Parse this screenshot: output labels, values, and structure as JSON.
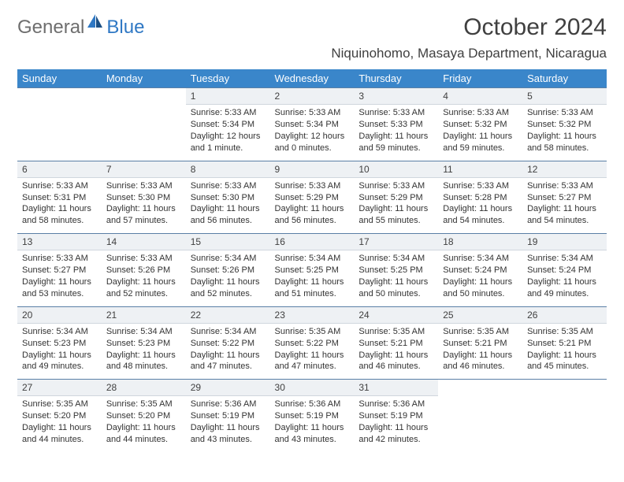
{
  "brand": {
    "part1": "General",
    "part2": "Blue"
  },
  "header": {
    "month_title": "October 2024",
    "location": "Niquinohomo, Masaya Department, Nicaragua"
  },
  "colors": {
    "header_bg": "#3a86ca",
    "daynum_bg": "#eef1f4",
    "rule": "#5a7fa6",
    "text": "#333333",
    "brand_grey": "#6e6e6e",
    "brand_blue": "#2f78c4"
  },
  "day_names": [
    "Sunday",
    "Monday",
    "Tuesday",
    "Wednesday",
    "Thursday",
    "Friday",
    "Saturday"
  ],
  "weeks": [
    [
      null,
      null,
      {
        "n": "1",
        "sr": "Sunrise: 5:33 AM",
        "ss": "Sunset: 5:34 PM",
        "dl": "Daylight: 12 hours and 1 minute."
      },
      {
        "n": "2",
        "sr": "Sunrise: 5:33 AM",
        "ss": "Sunset: 5:34 PM",
        "dl": "Daylight: 12 hours and 0 minutes."
      },
      {
        "n": "3",
        "sr": "Sunrise: 5:33 AM",
        "ss": "Sunset: 5:33 PM",
        "dl": "Daylight: 11 hours and 59 minutes."
      },
      {
        "n": "4",
        "sr": "Sunrise: 5:33 AM",
        "ss": "Sunset: 5:32 PM",
        "dl": "Daylight: 11 hours and 59 minutes."
      },
      {
        "n": "5",
        "sr": "Sunrise: 5:33 AM",
        "ss": "Sunset: 5:32 PM",
        "dl": "Daylight: 11 hours and 58 minutes."
      }
    ],
    [
      {
        "n": "6",
        "sr": "Sunrise: 5:33 AM",
        "ss": "Sunset: 5:31 PM",
        "dl": "Daylight: 11 hours and 58 minutes."
      },
      {
        "n": "7",
        "sr": "Sunrise: 5:33 AM",
        "ss": "Sunset: 5:30 PM",
        "dl": "Daylight: 11 hours and 57 minutes."
      },
      {
        "n": "8",
        "sr": "Sunrise: 5:33 AM",
        "ss": "Sunset: 5:30 PM",
        "dl": "Daylight: 11 hours and 56 minutes."
      },
      {
        "n": "9",
        "sr": "Sunrise: 5:33 AM",
        "ss": "Sunset: 5:29 PM",
        "dl": "Daylight: 11 hours and 56 minutes."
      },
      {
        "n": "10",
        "sr": "Sunrise: 5:33 AM",
        "ss": "Sunset: 5:29 PM",
        "dl": "Daylight: 11 hours and 55 minutes."
      },
      {
        "n": "11",
        "sr": "Sunrise: 5:33 AM",
        "ss": "Sunset: 5:28 PM",
        "dl": "Daylight: 11 hours and 54 minutes."
      },
      {
        "n": "12",
        "sr": "Sunrise: 5:33 AM",
        "ss": "Sunset: 5:27 PM",
        "dl": "Daylight: 11 hours and 54 minutes."
      }
    ],
    [
      {
        "n": "13",
        "sr": "Sunrise: 5:33 AM",
        "ss": "Sunset: 5:27 PM",
        "dl": "Daylight: 11 hours and 53 minutes."
      },
      {
        "n": "14",
        "sr": "Sunrise: 5:33 AM",
        "ss": "Sunset: 5:26 PM",
        "dl": "Daylight: 11 hours and 52 minutes."
      },
      {
        "n": "15",
        "sr": "Sunrise: 5:34 AM",
        "ss": "Sunset: 5:26 PM",
        "dl": "Daylight: 11 hours and 52 minutes."
      },
      {
        "n": "16",
        "sr": "Sunrise: 5:34 AM",
        "ss": "Sunset: 5:25 PM",
        "dl": "Daylight: 11 hours and 51 minutes."
      },
      {
        "n": "17",
        "sr": "Sunrise: 5:34 AM",
        "ss": "Sunset: 5:25 PM",
        "dl": "Daylight: 11 hours and 50 minutes."
      },
      {
        "n": "18",
        "sr": "Sunrise: 5:34 AM",
        "ss": "Sunset: 5:24 PM",
        "dl": "Daylight: 11 hours and 50 minutes."
      },
      {
        "n": "19",
        "sr": "Sunrise: 5:34 AM",
        "ss": "Sunset: 5:24 PM",
        "dl": "Daylight: 11 hours and 49 minutes."
      }
    ],
    [
      {
        "n": "20",
        "sr": "Sunrise: 5:34 AM",
        "ss": "Sunset: 5:23 PM",
        "dl": "Daylight: 11 hours and 49 minutes."
      },
      {
        "n": "21",
        "sr": "Sunrise: 5:34 AM",
        "ss": "Sunset: 5:23 PM",
        "dl": "Daylight: 11 hours and 48 minutes."
      },
      {
        "n": "22",
        "sr": "Sunrise: 5:34 AM",
        "ss": "Sunset: 5:22 PM",
        "dl": "Daylight: 11 hours and 47 minutes."
      },
      {
        "n": "23",
        "sr": "Sunrise: 5:35 AM",
        "ss": "Sunset: 5:22 PM",
        "dl": "Daylight: 11 hours and 47 minutes."
      },
      {
        "n": "24",
        "sr": "Sunrise: 5:35 AM",
        "ss": "Sunset: 5:21 PM",
        "dl": "Daylight: 11 hours and 46 minutes."
      },
      {
        "n": "25",
        "sr": "Sunrise: 5:35 AM",
        "ss": "Sunset: 5:21 PM",
        "dl": "Daylight: 11 hours and 46 minutes."
      },
      {
        "n": "26",
        "sr": "Sunrise: 5:35 AM",
        "ss": "Sunset: 5:21 PM",
        "dl": "Daylight: 11 hours and 45 minutes."
      }
    ],
    [
      {
        "n": "27",
        "sr": "Sunrise: 5:35 AM",
        "ss": "Sunset: 5:20 PM",
        "dl": "Daylight: 11 hours and 44 minutes."
      },
      {
        "n": "28",
        "sr": "Sunrise: 5:35 AM",
        "ss": "Sunset: 5:20 PM",
        "dl": "Daylight: 11 hours and 44 minutes."
      },
      {
        "n": "29",
        "sr": "Sunrise: 5:36 AM",
        "ss": "Sunset: 5:19 PM",
        "dl": "Daylight: 11 hours and 43 minutes."
      },
      {
        "n": "30",
        "sr": "Sunrise: 5:36 AM",
        "ss": "Sunset: 5:19 PM",
        "dl": "Daylight: 11 hours and 43 minutes."
      },
      {
        "n": "31",
        "sr": "Sunrise: 5:36 AM",
        "ss": "Sunset: 5:19 PM",
        "dl": "Daylight: 11 hours and 42 minutes."
      },
      null,
      null
    ]
  ]
}
